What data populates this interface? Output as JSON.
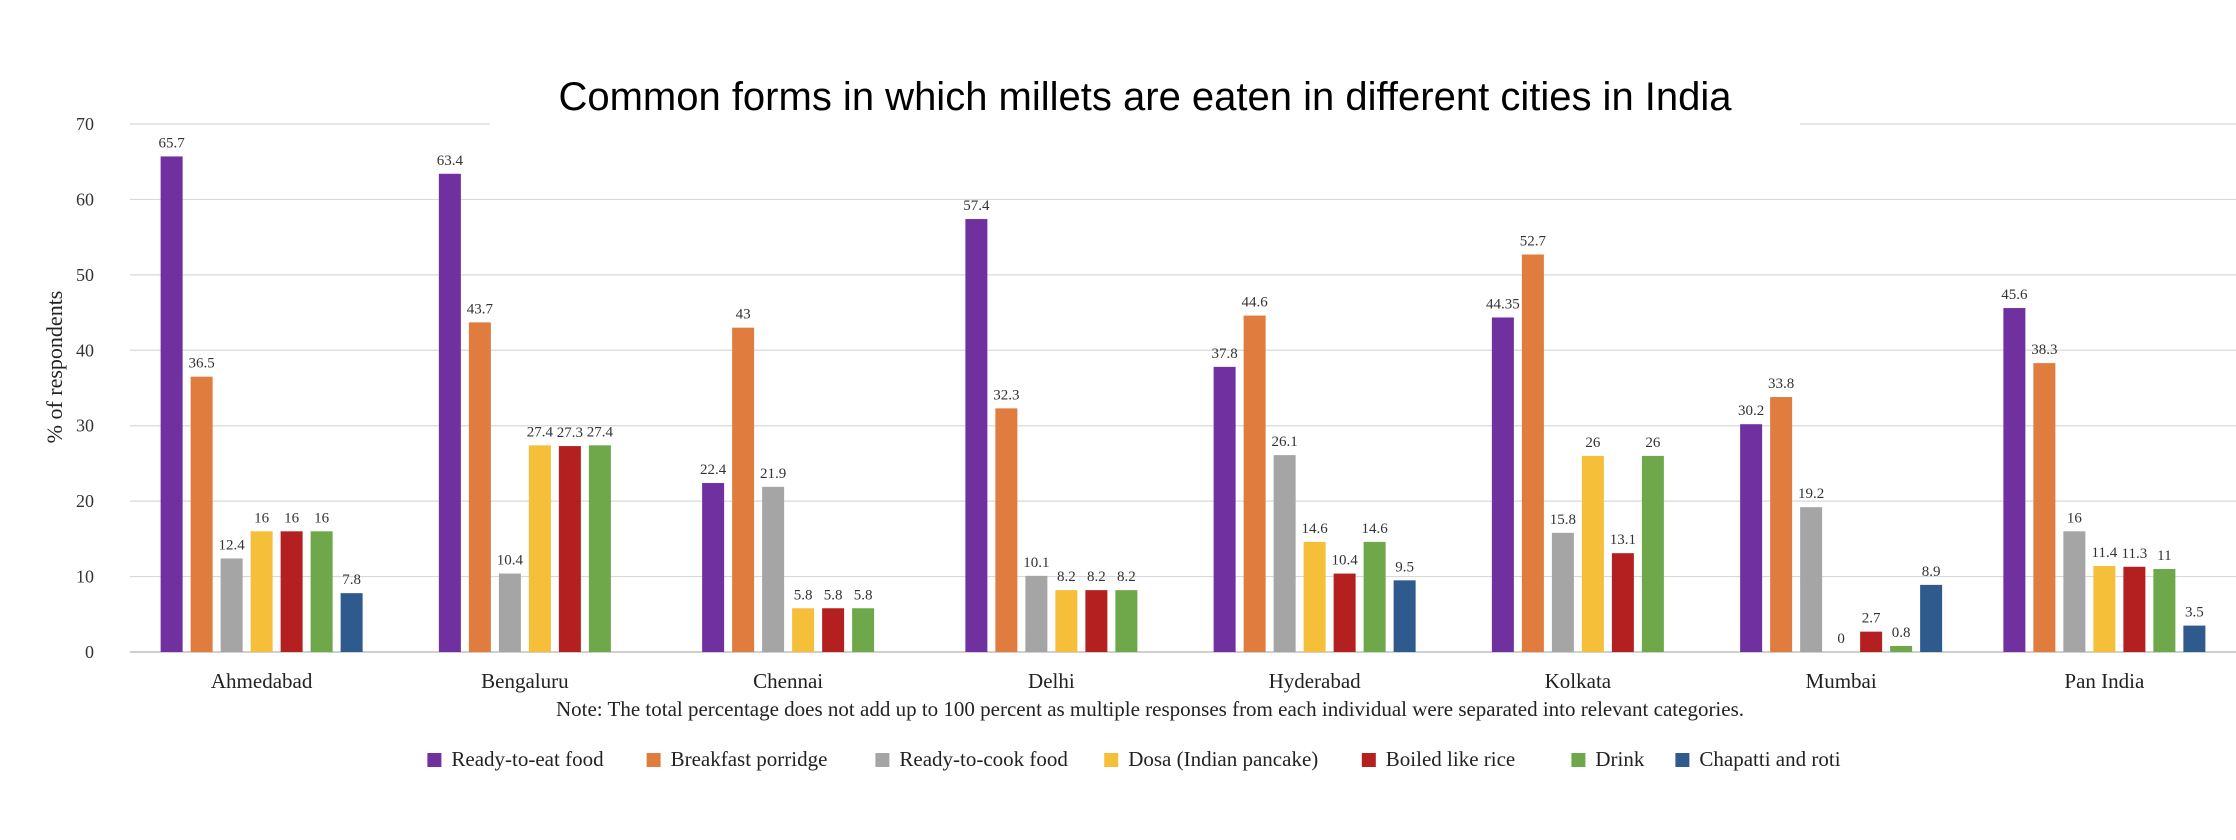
{
  "chart_data": {
    "type": "bar",
    "title": "Common forms in which millets are eaten in different cities in India",
    "ylabel": "% of respondents",
    "xlabel": "",
    "ylim": [
      0,
      70
    ],
    "yticks": [
      0,
      10,
      20,
      30,
      40,
      50,
      60,
      70
    ],
    "grid": true,
    "legend_position": "bottom",
    "categories": [
      "Ahmedabad",
      "Bengaluru",
      "Chennai",
      "Delhi",
      "Hyderabad",
      "Kolkata",
      "Mumbai",
      "Pan India"
    ],
    "series": [
      {
        "name": "Ready-to-eat food",
        "color": "#7030a0",
        "values": [
          65.7,
          63.4,
          22.4,
          57.4,
          37.8,
          44.35,
          30.2,
          45.6
        ],
        "labels": [
          "65.7",
          "63.4",
          "22.4",
          "57.4",
          "37.8",
          "44.35",
          "30.2",
          "45.6"
        ]
      },
      {
        "name": "Breakfast porridge",
        "color": "#e07c3e",
        "values": [
          36.5,
          43.7,
          43,
          32.3,
          44.6,
          52.7,
          33.8,
          38.3
        ],
        "labels": [
          "36.5",
          "43.7",
          "43",
          "32.3",
          "44.6",
          "52.7",
          "33.8",
          "38.3"
        ]
      },
      {
        "name": "Ready-to-cook food",
        "color": "#a5a5a5",
        "values": [
          12.4,
          10.4,
          21.9,
          10.1,
          26.1,
          15.8,
          19.2,
          16
        ],
        "labels": [
          "12.4",
          "10.4",
          "21.9",
          "10.1",
          "26.1",
          "15.8",
          "19.2",
          "16"
        ]
      },
      {
        "name": "Dosa (Indian pancake)",
        "color": "#f5bf3a",
        "values": [
          16,
          27.4,
          5.8,
          8.2,
          14.6,
          26,
          0,
          11.4
        ],
        "labels": [
          "16",
          "27.4",
          "5.8",
          "8.2",
          "14.6",
          "26",
          "0",
          "11.4"
        ]
      },
      {
        "name": "Boiled like rice",
        "color": "#b42020",
        "values": [
          16,
          27.3,
          5.8,
          8.2,
          10.4,
          13.1,
          2.7,
          11.3
        ],
        "labels": [
          "16",
          "27.3",
          "5.8",
          "8.2",
          "10.4",
          "13.1",
          "2.7",
          "11.3"
        ]
      },
      {
        "name": "Drink",
        "color": "#6fa84a",
        "values": [
          16,
          27.4,
          5.8,
          8.2,
          14.6,
          26,
          0.8,
          11
        ],
        "labels": [
          "16",
          "27.4",
          "5.8",
          "8.2",
          "14.6",
          "26",
          "0.8",
          "11"
        ]
      },
      {
        "name": "Chapatti and roti",
        "color": "#2f5a8e",
        "values": [
          7.8,
          null,
          null,
          null,
          9.5,
          null,
          8.9,
          3.5
        ],
        "labels": [
          "7.8",
          null,
          null,
          null,
          "9.5",
          null,
          "8.9",
          "3.5"
        ]
      }
    ],
    "note": "Note: The total percentage does not add up to 100 percent as multiple responses from each individual were separated into relevant categories."
  }
}
